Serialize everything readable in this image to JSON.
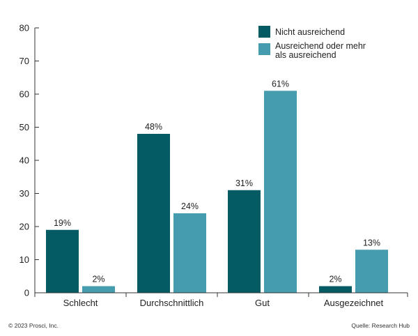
{
  "chart_data": {
    "type": "bar",
    "title": "",
    "xlabel": "",
    "ylabel": "",
    "ylim": [
      0,
      80
    ],
    "yticks": [
      0,
      10,
      20,
      30,
      40,
      50,
      60,
      70,
      80
    ],
    "grid": false,
    "legend_position": "top-right",
    "categories": [
      "Schlecht",
      "Durchschnittlich",
      "Gut",
      "Ausgezeichnet"
    ],
    "series": [
      {
        "name": "Nicht ausreichend",
        "color": "#045b64",
        "values": [
          19,
          48,
          31,
          2
        ],
        "labels": [
          "19%",
          "48%",
          "31%",
          "2%"
        ]
      },
      {
        "name": "Ausreichend oder mehr als ausreichend",
        "legend_lines": [
          "Ausreichend oder mehr",
          "als ausreichend"
        ],
        "color": "#449cae",
        "values": [
          2,
          24,
          61,
          13
        ],
        "labels": [
          "2%",
          "24%",
          "61%",
          "13%"
        ]
      }
    ]
  },
  "footer": {
    "copyright": "© 2023 Prosci, Inc.",
    "source": "Quelle: Research Hub"
  }
}
